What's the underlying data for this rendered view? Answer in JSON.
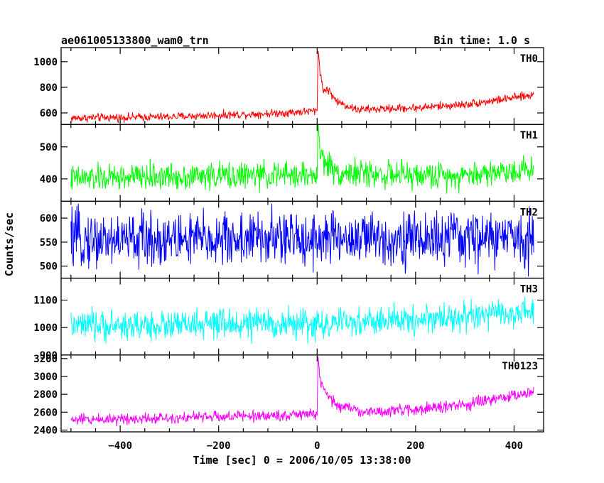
{
  "chart_data": {
    "type": "line",
    "title": "ae061005133800_wam0_trn",
    "bin_time_label": "Bin time: 1.0 s",
    "xlabel": "Time [sec] 0 = 2006/10/05 13:38:00",
    "ylabel": "Counts/sec",
    "xlim": [
      -520,
      460
    ],
    "x_range": [
      -500,
      440
    ],
    "x_ticks": [
      -400,
      -200,
      0,
      200,
      400
    ],
    "x_tick_labels": [
      "−400",
      "−200",
      "0",
      "200",
      "400"
    ],
    "grid": false,
    "panels": [
      {
        "name": "TH0",
        "color": "#ff0000",
        "ylim": [
          510,
          1110
        ],
        "y_ticks": [
          600,
          800,
          1000
        ],
        "y_tick_labels": [
          "600",
          "800",
          "1000"
        ],
        "profile": [
          [
            -500,
            560
          ],
          [
            -300,
            570
          ],
          [
            -100,
            595
          ],
          [
            -5,
            615
          ],
          [
            0,
            620
          ],
          [
            2,
            1100
          ],
          [
            6,
            930
          ],
          [
            12,
            770
          ],
          [
            20,
            790
          ],
          [
            40,
            690
          ],
          [
            80,
            625
          ],
          [
            200,
            640
          ],
          [
            300,
            665
          ],
          [
            440,
            740
          ]
        ],
        "noise": 48
      },
      {
        "name": "TH1",
        "color": "#00ff00",
        "ylim": [
          330,
          570
        ],
        "y_ticks": [
          400,
          500
        ],
        "y_tick_labels": [
          "400",
          "500"
        ],
        "profile": [
          [
            -500,
            400
          ],
          [
            -300,
            408
          ],
          [
            -5,
            412
          ],
          [
            0,
            415
          ],
          [
            2,
            570
          ],
          [
            6,
            480
          ],
          [
            15,
            455
          ],
          [
            40,
            420
          ],
          [
            200,
            410
          ],
          [
            300,
            412
          ],
          [
            440,
            432
          ]
        ],
        "noise": 62
      },
      {
        "name": "TH2",
        "color": "#0000ff",
        "ylim": [
          475,
          635
        ],
        "y_ticks": [
          500,
          550,
          600
        ],
        "y_tick_labels": [
          "500",
          "550",
          "600"
        ],
        "profile": [
          [
            -500,
            555
          ],
          [
            -200,
            556
          ],
          [
            0,
            558
          ],
          [
            200,
            557
          ],
          [
            440,
            560
          ]
        ],
        "noise": 85
      },
      {
        "name": "TH3",
        "color": "#00ffff",
        "ylim": [
          900,
          1180
        ],
        "y_ticks": [
          900,
          1000,
          1100
        ],
        "y_tick_labels": [
          "900",
          "1000",
          "1100"
        ],
        "profile": [
          [
            -500,
            1005
          ],
          [
            -300,
            1008
          ],
          [
            -100,
            1015
          ],
          [
            0,
            1010
          ],
          [
            100,
            1020
          ],
          [
            200,
            1030
          ],
          [
            300,
            1040
          ],
          [
            440,
            1055
          ]
        ],
        "noise": 80
      },
      {
        "name": "TH0123",
        "color": "#ff00ff",
        "ylim": [
          2380,
          3240
        ],
        "y_ticks": [
          2400,
          2600,
          2800,
          3000,
          3200
        ],
        "y_tick_labels": [
          "2400",
          "2600",
          "2800",
          "3000",
          "3200"
        ],
        "profile": [
          [
            -500,
            2515
          ],
          [
            -300,
            2540
          ],
          [
            -100,
            2560
          ],
          [
            -5,
            2580
          ],
          [
            0,
            2585
          ],
          [
            2,
            3240
          ],
          [
            6,
            2950
          ],
          [
            15,
            2820
          ],
          [
            40,
            2680
          ],
          [
            100,
            2600
          ],
          [
            200,
            2630
          ],
          [
            300,
            2680
          ],
          [
            440,
            2830
          ]
        ],
        "noise": 95
      }
    ]
  }
}
